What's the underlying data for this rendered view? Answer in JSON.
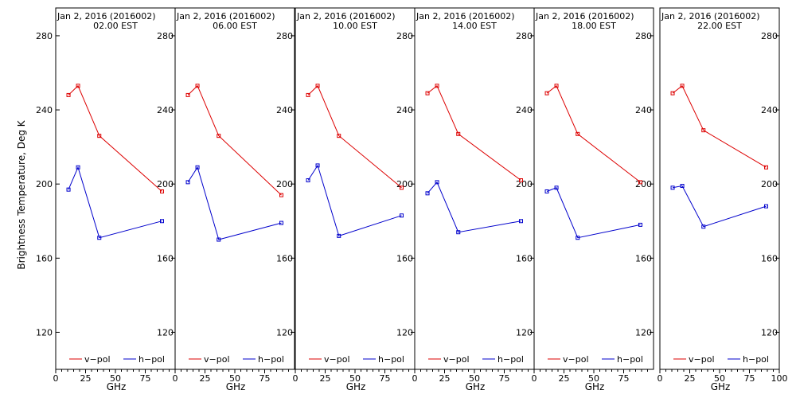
{
  "chart_data": {
    "type": "line",
    "ylabel": "Brightness Temperature, Deg K",
    "xlabel": "GHz",
    "xlim": [
      0,
      100
    ],
    "ylim": [
      100,
      295
    ],
    "x_ticks": [
      0,
      25,
      50,
      75
    ],
    "x_tick_labels_last": [
      "0",
      "25",
      "50",
      "75",
      "100"
    ],
    "y_ticks": [
      120,
      160,
      200,
      240,
      280
    ],
    "colors": {
      "vpol": "#dd0000",
      "hpol": "#0000cc"
    },
    "legend": {
      "vpol": "v−pol",
      "hpol": "h−pol",
      "placement": "bottom"
    },
    "panels": [
      {
        "title_line1": "Jan  2, 2016 (2016002)",
        "title_line2": "02.00 EST",
        "freqs": [
          10.7,
          18.7,
          36.5,
          89.0
        ],
        "vpol": [
          248,
          253,
          226,
          196
        ],
        "hpol": [
          197,
          209,
          171,
          180
        ]
      },
      {
        "title_line1": "Jan  2, 2016 (2016002)",
        "title_line2": "06.00 EST",
        "freqs": [
          10.7,
          18.7,
          36.5,
          89.0
        ],
        "vpol": [
          248,
          253,
          226,
          194
        ],
        "hpol": [
          201,
          209,
          170,
          179
        ]
      },
      {
        "title_line1": "Jan  2, 2016 (2016002)",
        "title_line2": "10.00 EST",
        "freqs": [
          10.7,
          18.7,
          36.5,
          89.0
        ],
        "vpol": [
          248,
          253,
          226,
          198
        ],
        "hpol": [
          202,
          210,
          172,
          183
        ]
      },
      {
        "title_line1": "Jan  2, 2016 (2016002)",
        "title_line2": "14.00 EST",
        "freqs": [
          10.7,
          18.7,
          36.5,
          89.0
        ],
        "vpol": [
          249,
          253,
          227,
          202
        ],
        "hpol": [
          195,
          201,
          174,
          180
        ]
      },
      {
        "title_line1": "Jan  2, 2016 (2016002)",
        "title_line2": "18.00 EST",
        "freqs": [
          10.7,
          18.7,
          36.5,
          89.0
        ],
        "vpol": [
          249,
          253,
          227,
          201
        ],
        "hpol": [
          196,
          198,
          171,
          178
        ]
      },
      {
        "title_line1": "Jan  2, 2016 (2016002)",
        "title_line2": "22.00 EST",
        "freqs": [
          10.7,
          18.7,
          36.5,
          89.0
        ],
        "vpol": [
          249,
          253,
          229,
          209
        ],
        "hpol": [
          198,
          199,
          177,
          188
        ]
      }
    ]
  }
}
